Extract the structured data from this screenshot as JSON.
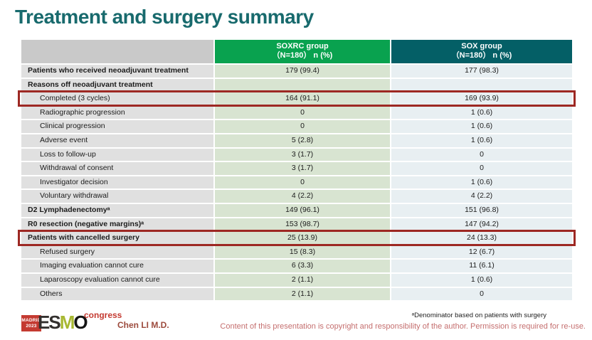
{
  "slide": {
    "title": "Treatment and surgery summary"
  },
  "table": {
    "header": {
      "col1": "",
      "col2": {
        "name": "SOXRC group",
        "sub": "（N=180） n (%)"
      },
      "col3": {
        "name": "SOX group",
        "sub": "（N=180） n (%)"
      }
    },
    "rows": [
      {
        "label": "Patients who received neoadjuvant treatment",
        "soxrc": "179 (99.4)",
        "sox": "177 (98.3)",
        "bold": true,
        "indent": false,
        "highlight": false
      },
      {
        "label": "Reasons off neoadjuvant treatment",
        "soxrc": "",
        "sox": "",
        "bold": true,
        "indent": false,
        "highlight": false
      },
      {
        "label": "Completed (3 cycles)",
        "soxrc": "164 (91.1)",
        "sox": "169 (93.9)",
        "bold": false,
        "indent": true,
        "highlight": true
      },
      {
        "label": "Radiographic progression",
        "soxrc": "0",
        "sox": "1 (0.6)",
        "bold": false,
        "indent": true,
        "highlight": false
      },
      {
        "label": "Clinical progression",
        "soxrc": "0",
        "sox": "1 (0.6)",
        "bold": false,
        "indent": true,
        "highlight": false
      },
      {
        "label": "Adverse event",
        "soxrc": "5 (2.8)",
        "sox": "1 (0.6)",
        "bold": false,
        "indent": true,
        "highlight": false
      },
      {
        "label": "Loss to follow-up",
        "soxrc": "3 (1.7)",
        "sox": "0",
        "bold": false,
        "indent": true,
        "highlight": false
      },
      {
        "label": "Withdrawal of consent",
        "soxrc": "3 (1.7)",
        "sox": "0",
        "bold": false,
        "indent": true,
        "highlight": false
      },
      {
        "label": "Investigator decision",
        "soxrc": "0",
        "sox": "1 (0.6)",
        "bold": false,
        "indent": true,
        "highlight": false
      },
      {
        "label": "Voluntary withdrawal",
        "soxrc": "4 (2.2)",
        "sox": "4 (2.2)",
        "bold": false,
        "indent": true,
        "highlight": false
      },
      {
        "label": "D2 Lymphadenectomyᵃ",
        "soxrc": "149 (96.1)",
        "sox": "151 (96.8)",
        "bold": true,
        "indent": false,
        "highlight": false
      },
      {
        "label": "R0 resection (negative margins)ᵃ",
        "soxrc": "153 (98.7)",
        "sox": "147 (94.2)",
        "bold": true,
        "indent": false,
        "highlight": false
      },
      {
        "label": "Patients with cancelled surgery",
        "soxrc": "25 (13.9)",
        "sox": "24 (13.3)",
        "bold": true,
        "indent": false,
        "highlight": true
      },
      {
        "label": "Refused surgery",
        "soxrc": "15 (8.3)",
        "sox": "12 (6.7)",
        "bold": false,
        "indent": true,
        "highlight": false
      },
      {
        "label": "Imaging evaluation cannot cure",
        "soxrc": "6 (3.3)",
        "sox": "11 (6.1)",
        "bold": false,
        "indent": true,
        "highlight": false
      },
      {
        "label": "Laparoscopy evaluation cannot cure",
        "soxrc": "2 (1.1)",
        "sox": "1 (0.6)",
        "bold": false,
        "indent": true,
        "highlight": false
      },
      {
        "label": "Others",
        "soxrc": "2 (1.1)",
        "sox": "0",
        "bold": false,
        "indent": true,
        "highlight": false
      }
    ]
  },
  "footer": {
    "logo": {
      "city": "MADRID",
      "year": "2023",
      "esmo_letters": [
        "E",
        "S",
        "M",
        "O"
      ],
      "congress": "congress"
    },
    "presenter": "Chen LI M.D.",
    "footnote": "ᵃDenominator based on patients with surgery",
    "copyright": "Content of this presentation is copyright and responsibility of the author. Permission is required for re-use."
  },
  "colors": {
    "title": "#186a6d",
    "header-green": "#09a24f",
    "header-teal": "#045f66",
    "label-bg": "#e0e0e0",
    "green-bg": "#d8e4d1",
    "blue-bg": "#e8eff2",
    "highlight-red": "#9d2823",
    "logo-red": "#c43a31",
    "logo-olive": "#a8b832",
    "presenter": "#9c4a3c",
    "copyright": "#c56f6f"
  }
}
